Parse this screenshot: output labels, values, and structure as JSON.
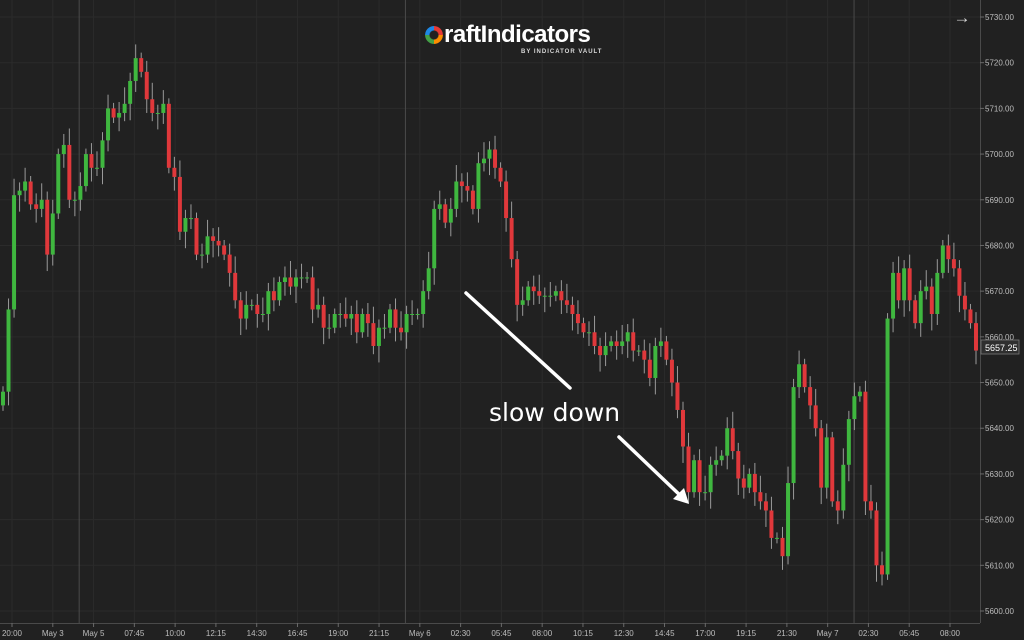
{
  "logo": {
    "brand": "raftIndicators",
    "tagline": "BY INDICATOR VAULT"
  },
  "icons": {
    "navigate": "arrow-right-icon"
  },
  "chart_data": {
    "type": "candlestick",
    "price_label": "5657.25",
    "annotation": "slow down",
    "ylim": [
      5598,
      5733
    ],
    "y_ticks": [
      "5730.00",
      "5720.00",
      "5710.00",
      "5700.00",
      "5690.00",
      "5680.00",
      "5670.00",
      "5660.00",
      "5650.00",
      "5640.00",
      "5630.00",
      "5620.00",
      "5610.00",
      "5600.00"
    ],
    "x_ticks": [
      "20:00",
      "May 3",
      "May 5",
      "07:45",
      "10:00",
      "12:15",
      "14:30",
      "16:45",
      "19:00",
      "21:15",
      "May 6",
      "02:30",
      "05:45",
      "08:00",
      "10:15",
      "12:30",
      "14:45",
      "17:00",
      "19:15",
      "21:30",
      "May 7",
      "02:30",
      "05:45",
      "08:00"
    ],
    "session_breaks": [
      2,
      10,
      21
    ],
    "colors": {
      "up": "#3fb73f",
      "down": "#e0383b",
      "wick": "#9a9a9a",
      "background": "#212121",
      "grid": "#2b2b2b",
      "axis_text": "#bdbdbd",
      "separator": "#4a4a4a"
    },
    "candles": {
      "open": [
        5645,
        5648,
        5666,
        5691,
        5692,
        5694,
        5689,
        5688,
        5690,
        5678,
        5687,
        5700,
        5702,
        5690,
        5690,
        5693,
        5700,
        5697,
        5697,
        5703,
        5710,
        5708,
        5709,
        5711,
        5716,
        5721,
        5718,
        5712,
        5709,
        5709,
        5711,
        5697,
        5695,
        5683,
        5686,
        5686,
        5678,
        5678,
        5682,
        5681,
        5680,
        5678,
        5674,
        5668,
        5664,
        5667,
        5667,
        5665,
        5665,
        5670,
        5668,
        5672,
        5673,
        5671,
        5673,
        5673,
        5673,
        5666,
        5667,
        5662,
        5662,
        5665,
        5665,
        5664,
        5665,
        5661,
        5665,
        5663,
        5658,
        5662,
        5662,
        5666,
        5662,
        5661,
        5665,
        5665,
        5665,
        5670,
        5675,
        5688,
        5689,
        5685,
        5688,
        5694,
        5693,
        5692,
        5688,
        5698,
        5699,
        5701,
        5697,
        5694,
        5686,
        5677,
        5667,
        5668,
        5671,
        5670,
        5669,
        5669,
        5669,
        5670,
        5668,
        5667,
        5665,
        5663,
        5661,
        5661,
        5658,
        5656,
        5658,
        5659,
        5658,
        5659,
        5661,
        5657,
        5657,
        5655,
        5651,
        5658,
        5659,
        5655,
        5650,
        5644,
        5636,
        5626,
        5633,
        5626,
        5626,
        5632,
        5633,
        5634,
        5640,
        5635,
        5629,
        5627,
        5630,
        5626,
        5624,
        5622,
        5616,
        5616,
        5612,
        5628,
        5649,
        5654,
        5649,
        5645,
        5640,
        5627,
        5638,
        5624,
        5622,
        5632,
        5642,
        5647,
        5648,
        5624,
        5622,
        5610,
        5608,
        5664,
        5674,
        5668,
        5675,
        5668,
        5663,
        5670,
        5671,
        5665,
        5674,
        5680,
        5677,
        5675,
        5669,
        5666,
        5663
      ],
      "close": [
        5648,
        5666,
        5691,
        5692,
        5694,
        5689,
        5688,
        5690,
        5678,
        5687,
        5700,
        5702,
        5690,
        5690,
        5693,
        5700,
        5697,
        5697,
        5703,
        5710,
        5708,
        5709,
        5711,
        5716,
        5721,
        5718,
        5712,
        5709,
        5709,
        5711,
        5697,
        5695,
        5683,
        5686,
        5686,
        5678,
        5678,
        5682,
        5681,
        5680,
        5678,
        5674,
        5668,
        5664,
        5667,
        5667,
        5665,
        5665,
        5670,
        5668,
        5672,
        5673,
        5671,
        5673,
        5673,
        5673,
        5666,
        5667,
        5662,
        5662,
        5665,
        5665,
        5664,
        5665,
        5661,
        5665,
        5663,
        5658,
        5662,
        5662,
        5666,
        5662,
        5661,
        5665,
        5665,
        5665,
        5670,
        5675,
        5688,
        5689,
        5685,
        5688,
        5694,
        5693,
        5692,
        5688,
        5698,
        5699,
        5701,
        5697,
        5694,
        5686,
        5677,
        5667,
        5668,
        5671,
        5670,
        5669,
        5669,
        5669,
        5670,
        5668,
        5667,
        5665,
        5663,
        5661,
        5661,
        5658,
        5656,
        5658,
        5659,
        5658,
        5659,
        5661,
        5657,
        5657,
        5655,
        5651,
        5658,
        5659,
        5655,
        5650,
        5644,
        5636,
        5626,
        5633,
        5626,
        5626,
        5632,
        5633,
        5634,
        5640,
        5635,
        5629,
        5627,
        5630,
        5626,
        5624,
        5622,
        5616,
        5616,
        5612,
        5628,
        5649,
        5654,
        5649,
        5645,
        5640,
        5627,
        5638,
        5624,
        5622,
        5632,
        5642,
        5647,
        5648,
        5624,
        5622,
        5610,
        5608,
        5664,
        5674,
        5668,
        5675,
        5668,
        5663,
        5670,
        5671,
        5665,
        5674,
        5680,
        5677,
        5675,
        5669,
        5666,
        5663,
        5657
      ]
    }
  }
}
